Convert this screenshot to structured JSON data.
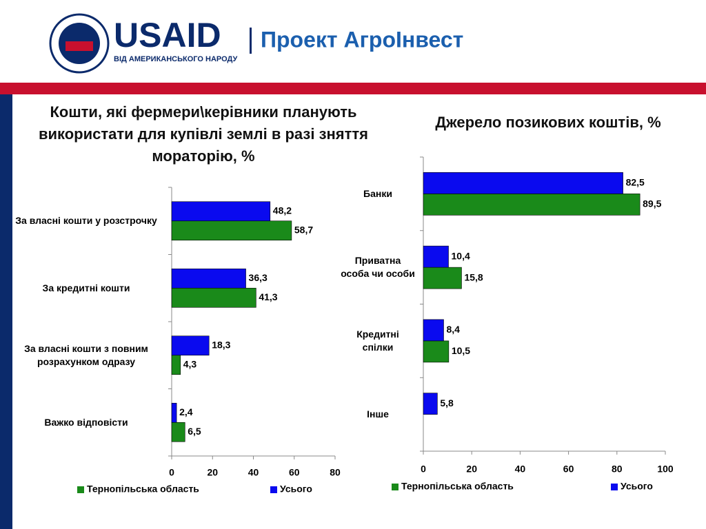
{
  "header": {
    "logo_title": "USAID",
    "logo_subtitle": "ВІД АМЕРИКАНСЬКОГО НАРОДУ",
    "project": "Проект АгроІнвест"
  },
  "chart_data": [
    {
      "type": "barh",
      "title": "Кошти, які фермери\\керівники планують використати для купівлі землі в разі зняття мораторію, %",
      "categories": [
        "За власні кошти у розстрочку",
        "За кредитні кошти",
        "За власні кошти з повним розрахунком одразу",
        "Важко відповісти"
      ],
      "series": [
        {
          "name": "Тернопільська область",
          "color": "#1a8a1a",
          "values": [
            58.7,
            41.3,
            4.3,
            6.5
          ],
          "value_labels": [
            "58,7",
            "41,3",
            "4,3",
            "6,5"
          ]
        },
        {
          "name": "Усього",
          "color": "#0a0aef",
          "values": [
            48.2,
            36.3,
            18.3,
            2.4
          ],
          "value_labels": [
            "48,2",
            "36,3",
            "18,3",
            "2,4"
          ]
        }
      ],
      "xlim": [
        0,
        80
      ],
      "xticks": [
        0,
        20,
        40,
        60,
        80
      ]
    },
    {
      "type": "barh",
      "title": "Джерело позикових коштів, %",
      "categories": [
        "Банки",
        "Приватна особа чи особи",
        "Кредитні спілки",
        "Інше"
      ],
      "series": [
        {
          "name": "Тернопільська область",
          "color": "#1a8a1a",
          "values": [
            89.5,
            15.8,
            10.5,
            null
          ],
          "value_labels": [
            "89,5",
            "15,8",
            "10,5",
            null
          ]
        },
        {
          "name": "Усього",
          "color": "#0a0aef",
          "values": [
            82.5,
            10.4,
            8.4,
            5.8
          ],
          "value_labels": [
            "82,5",
            "10,4",
            "8,4",
            "5,8"
          ]
        }
      ],
      "xlim": [
        0,
        100
      ],
      "xticks": [
        0,
        20,
        40,
        60,
        80,
        100
      ]
    }
  ]
}
